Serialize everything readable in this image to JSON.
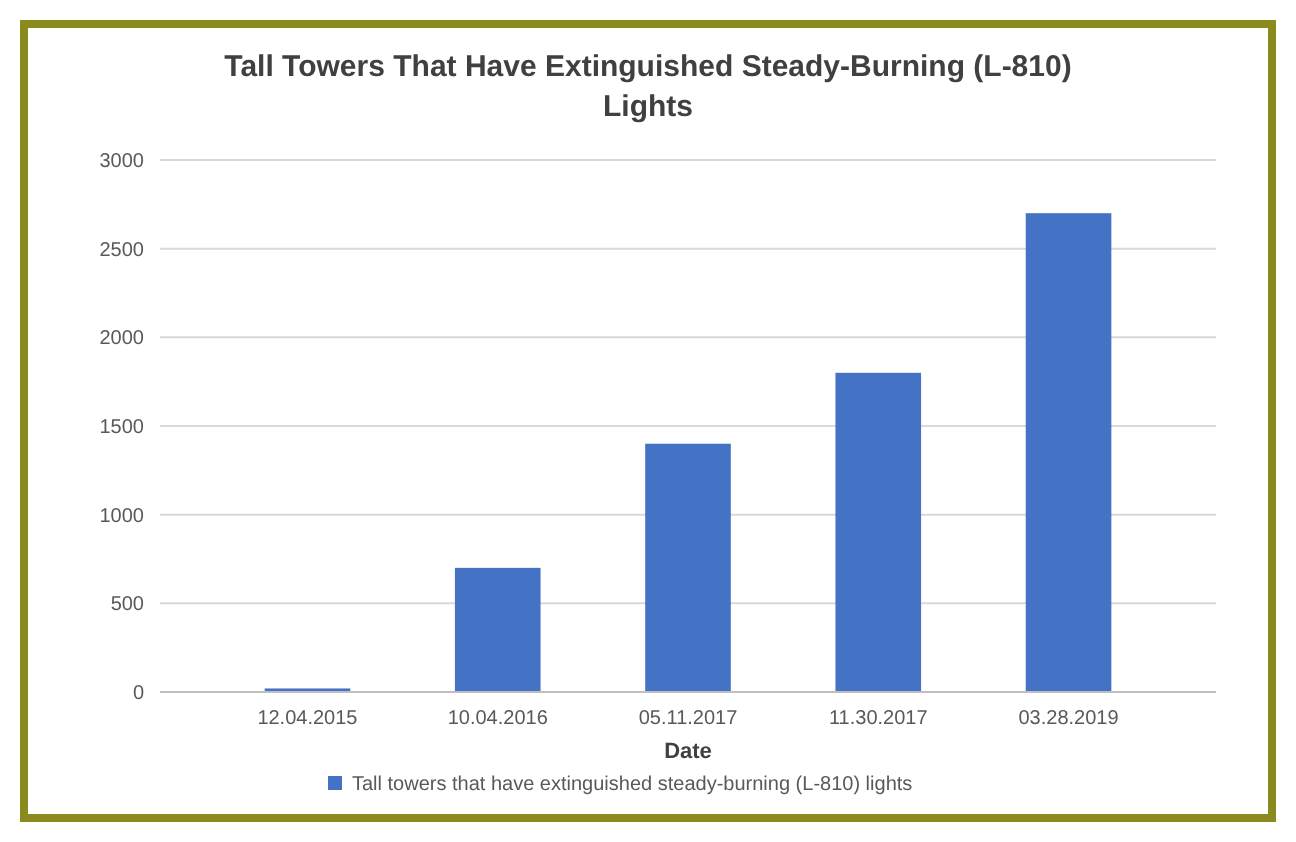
{
  "chart_data": {
    "type": "bar",
    "title": "Tall Towers That Have Extinguished Steady-Burning (L-810) Lights",
    "xlabel": "Date",
    "categories": [
      "12.04.2015",
      "10.04.2016",
      "05.11.2017",
      "11.30.2017",
      "03.28.2019"
    ],
    "series": [
      {
        "name": "Tall towers that have extinguished steady-burning (L-810) lights",
        "color": "#4472c4",
        "values": [
          20,
          700,
          1400,
          1800,
          2700
        ]
      }
    ],
    "ylim": [
      0,
      3000
    ],
    "yticks": [
      0,
      500,
      1000,
      1500,
      2000,
      2500,
      3000
    ],
    "grid": "y",
    "legend": "bottom"
  }
}
